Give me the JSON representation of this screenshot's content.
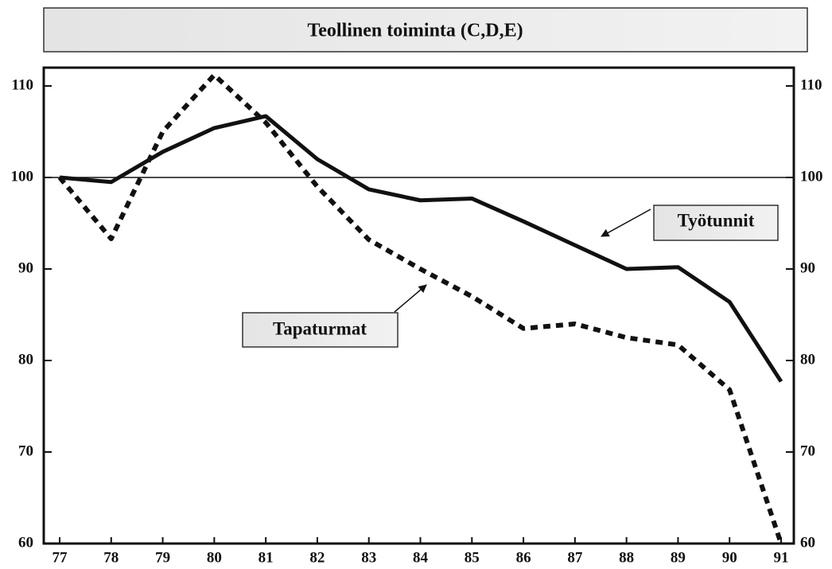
{
  "chart_data": {
    "type": "line",
    "title": "Teollinen toiminta (C,D,E)",
    "categories": [
      "77",
      "78",
      "79",
      "80",
      "81",
      "82",
      "83",
      "84",
      "85",
      "86",
      "87",
      "88",
      "89",
      "90",
      "91"
    ],
    "series": [
      {
        "name": "Työtunnit",
        "color": "#111111",
        "style": "solid",
        "values": [
          100,
          99.5,
          102.8,
          105.4,
          106.7,
          102,
          98.7,
          97.5,
          97.7,
          95.2,
          92.6,
          90,
          90.2,
          86.4,
          77.7
        ]
      },
      {
        "name": "Tapaturmat",
        "color": "#111111",
        "style": "dotted",
        "values": [
          100,
          93.3,
          105,
          111.2,
          106,
          99,
          93.2,
          90,
          87,
          83.5,
          84,
          82.5,
          81.7,
          76.8,
          60
        ]
      }
    ],
    "reference_line": 100,
    "ylim": [
      60,
      112
    ],
    "yticks": [
      60,
      70,
      80,
      90,
      100,
      110
    ],
    "y2lim": [
      60,
      112
    ],
    "y2ticks": [
      60,
      70,
      80,
      90,
      100,
      110
    ]
  }
}
